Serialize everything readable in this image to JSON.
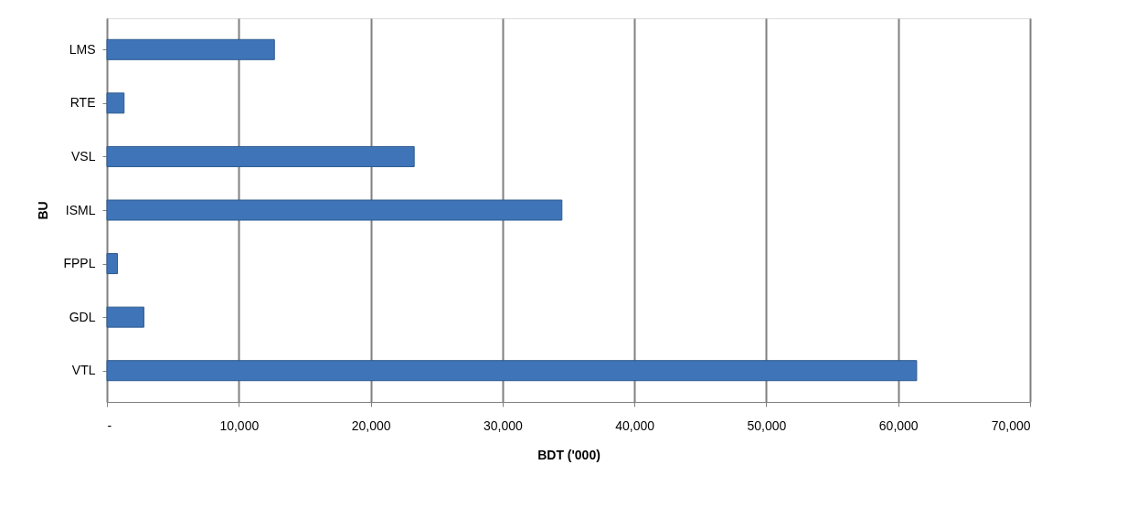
{
  "chart_data": {
    "type": "bar",
    "orientation": "horizontal",
    "categories": [
      "LMS",
      "RTE",
      "VSL",
      "ISML",
      "FPPL",
      "GDL",
      "VTL"
    ],
    "values": [
      12700,
      1300,
      23300,
      34500,
      800,
      2800,
      61400
    ],
    "color": "#3f74b8",
    "xlabel": "BDT ('000)",
    "ylabel": "BU",
    "xlim": [
      0,
      70000
    ],
    "xticks": [
      {
        "value": 0,
        "label": "-"
      },
      {
        "value": 10000,
        "label": "10,000"
      },
      {
        "value": 20000,
        "label": "20,000"
      },
      {
        "value": 30000,
        "label": "30,000"
      },
      {
        "value": 40000,
        "label": "40,000"
      },
      {
        "value": 50000,
        "label": "50,000"
      },
      {
        "value": 60000,
        "label": "60,000"
      },
      {
        "value": 70000,
        "label": "70,000"
      }
    ],
    "grid": "x"
  }
}
